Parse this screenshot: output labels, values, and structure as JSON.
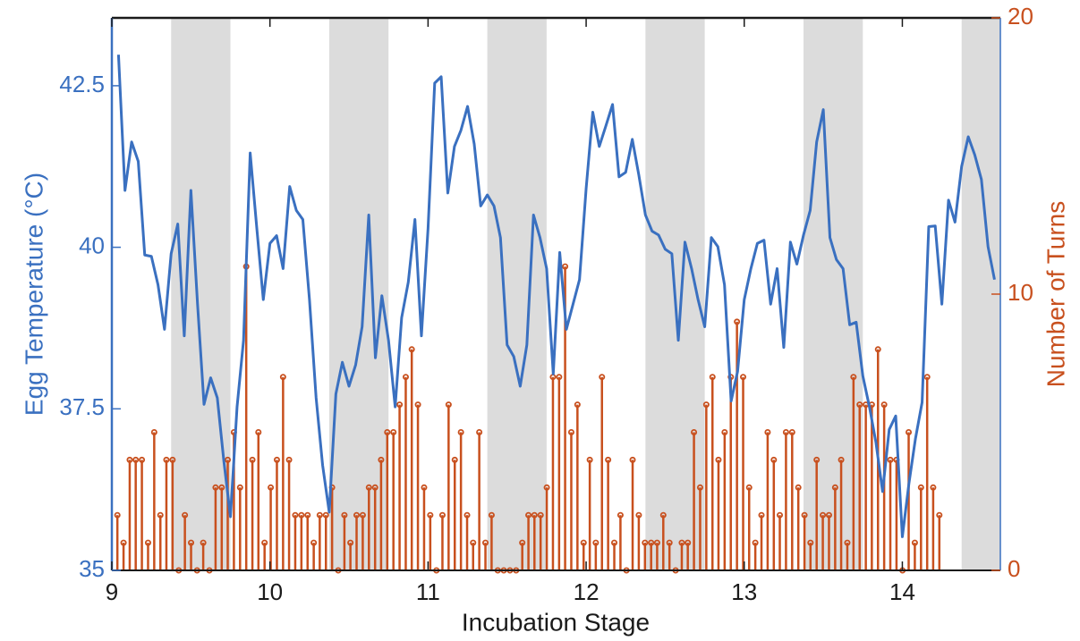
{
  "chart_data": {
    "type": "line",
    "xlabel": "Incubation Stage",
    "ylabel": "Egg Temperature (°C)",
    "y2label": "Number of Turns",
    "xlim": [
      9,
      14.62
    ],
    "xticks": [
      9,
      10,
      11,
      12,
      13,
      14
    ],
    "ylim": [
      35,
      43.55
    ],
    "yticks": [
      35,
      37.5,
      40,
      42.5
    ],
    "y2lim": [
      0,
      20
    ],
    "y2ticks": [
      0,
      10,
      20
    ],
    "y_color": "#3a70c0",
    "y2_color": "#c8501e",
    "shade_color": "#dcdcdc",
    "shaded_x_ranges": [
      [
        9.375,
        9.75
      ],
      [
        10.375,
        10.75
      ],
      [
        11.375,
        11.75
      ],
      [
        12.375,
        12.75
      ],
      [
        13.375,
        13.75
      ],
      [
        14.375,
        14.75
      ]
    ],
    "series": [
      {
        "type": "line",
        "axis": "y",
        "color": "#3a70c0",
        "x": [
          9.042,
          9.083,
          9.125,
          9.167,
          9.208,
          9.25,
          9.292,
          9.333,
          9.375,
          9.417,
          9.458,
          9.5,
          9.542,
          9.583,
          9.625,
          9.667,
          9.708,
          9.75,
          9.792,
          9.833,
          9.875,
          9.917,
          9.958,
          10,
          10.042,
          10.083,
          10.125,
          10.167,
          10.208,
          10.25,
          10.292,
          10.333,
          10.375,
          10.417,
          10.458,
          10.5,
          10.542,
          10.583,
          10.625,
          10.667,
          10.708,
          10.75,
          10.792,
          10.833,
          10.875,
          10.917,
          10.958,
          11,
          11.042,
          11.083,
          11.125,
          11.167,
          11.208,
          11.25,
          11.292,
          11.333,
          11.375,
          11.417,
          11.458,
          11.5,
          11.542,
          11.583,
          11.625,
          11.667,
          11.708,
          11.75,
          11.792,
          11.833,
          11.875,
          11.917,
          11.958,
          12,
          12.042,
          12.083,
          12.125,
          12.167,
          12.208,
          12.25,
          12.292,
          12.333,
          12.375,
          12.417,
          12.458,
          12.5,
          12.542,
          12.583,
          12.625,
          12.667,
          12.708,
          12.75,
          12.792,
          12.833,
          12.875,
          12.917,
          12.958,
          13,
          13.042,
          13.083,
          13.125,
          13.167,
          13.208,
          13.25,
          13.292,
          13.333,
          13.375,
          13.417,
          13.458,
          13.5,
          13.542,
          13.583,
          13.625,
          13.667,
          13.708,
          13.75,
          13.792,
          13.833,
          13.875,
          13.917,
          13.958,
          14,
          14.042,
          14.083,
          14.125,
          14.167,
          14.208,
          14.25,
          14.292,
          14.333,
          14.375,
          14.417,
          14.458,
          14.5,
          14.542,
          14.583
        ],
        "values": [
          42.98,
          40.88,
          41.63,
          41.33,
          39.88,
          39.86,
          39.42,
          38.73,
          39.9,
          40.36,
          38.63,
          40.88,
          39.12,
          37.57,
          37.98,
          37.67,
          36.7,
          35.83,
          37.53,
          38.56,
          41.46,
          40.29,
          39.19,
          40.06,
          40.18,
          39.67,
          40.94,
          40.57,
          40.43,
          39.19,
          37.67,
          36.63,
          35.9,
          37.73,
          38.22,
          37.85,
          38.18,
          38.77,
          40.5,
          38.29,
          39.25,
          38.56,
          37.53,
          38.91,
          39.46,
          40.43,
          38.63,
          40.29,
          42.54,
          42.64,
          40.84,
          41.56,
          41.81,
          42.18,
          41.6,
          40.64,
          40.81,
          40.64,
          40.15,
          38.49,
          38.31,
          37.85,
          38.49,
          40.5,
          40.15,
          39.67,
          38.04,
          39.92,
          38.73,
          39.12,
          39.5,
          40.91,
          42.09,
          41.56,
          41.88,
          42.21,
          41.09,
          41.16,
          41.67,
          41.12,
          40.5,
          40.25,
          40.19,
          39.97,
          39.9,
          38.56,
          40.08,
          39.67,
          39.19,
          38.77,
          40.15,
          40.01,
          39.42,
          37.62,
          38.08,
          39.19,
          39.67,
          40.06,
          40.11,
          39.12,
          39.67,
          38.45,
          40.08,
          39.74,
          40.19,
          40.57,
          41.63,
          42.13,
          40.15,
          39.81,
          39.67,
          38.8,
          38.84,
          38.01,
          37.53,
          36.98,
          36.22,
          37.18,
          37.39,
          35.52,
          36.35,
          37.04,
          37.6,
          40.32,
          40.33,
          39.12,
          40.73,
          40.39,
          41.25,
          41.71,
          41.43,
          41.05,
          40.01,
          39.5
        ]
      },
      {
        "type": "stem",
        "axis": "y2",
        "color": "#c8501e",
        "x": [
          9.035,
          9.074,
          9.113,
          9.151,
          9.19,
          9.229,
          9.268,
          9.307,
          9.345,
          9.384,
          9.423,
          9.462,
          9.501,
          9.539,
          9.578,
          9.617,
          9.656,
          9.695,
          9.733,
          9.772,
          9.811,
          9.85,
          9.889,
          9.927,
          9.966,
          10.005,
          10.044,
          10.083,
          10.121,
          10.16,
          10.199,
          10.238,
          10.277,
          10.315,
          10.354,
          10.393,
          10.432,
          10.471,
          10.509,
          10.548,
          10.587,
          10.626,
          10.665,
          10.703,
          10.742,
          10.781,
          10.82,
          10.859,
          10.897,
          10.936,
          10.975,
          11.014,
          11.053,
          11.091,
          11.13,
          11.169,
          11.208,
          11.247,
          11.285,
          11.324,
          11.363,
          11.402,
          11.441,
          11.479,
          11.518,
          11.557,
          11.596,
          11.635,
          11.673,
          11.712,
          11.751,
          11.79,
          11.829,
          11.867,
          11.906,
          11.945,
          11.984,
          12.023,
          12.061,
          12.1,
          12.139,
          12.178,
          12.217,
          12.255,
          12.294,
          12.333,
          12.372,
          12.411,
          12.449,
          12.488,
          12.527,
          12.566,
          12.605,
          12.643,
          12.682,
          12.721,
          12.76,
          12.799,
          12.837,
          12.876,
          12.915,
          12.954,
          12.993,
          13.031,
          13.07,
          13.109,
          13.148,
          13.187,
          13.225,
          13.264,
          13.303,
          13.342,
          13.381,
          13.419,
          13.458,
          13.497,
          13.536,
          13.575,
          13.613,
          13.652,
          13.691,
          13.73,
          13.769,
          13.807,
          13.846,
          13.885,
          13.924,
          13.963,
          14.001,
          14.04,
          14.079,
          14.118,
          14.157,
          14.195,
          14.234
        ],
        "values": [
          2,
          1,
          4,
          4,
          4,
          1,
          5,
          2,
          4,
          4,
          0,
          2,
          1,
          0,
          1,
          0,
          3,
          3,
          4,
          5,
          3,
          11,
          4,
          5,
          1,
          3,
          4,
          7,
          4,
          2,
          2,
          2,
          1,
          2,
          2,
          3,
          0,
          2,
          1,
          2,
          2,
          3,
          3,
          4,
          5,
          5,
          6,
          7,
          8,
          6,
          3,
          2,
          0,
          2,
          6,
          4,
          5,
          2,
          1,
          5,
          1,
          2,
          0,
          0,
          0,
          0,
          1,
          2,
          2,
          2,
          3,
          7,
          7,
          11,
          5,
          6,
          1,
          4,
          1,
          7,
          4,
          1,
          2,
          0,
          4,
          2,
          1,
          1,
          1,
          2,
          1,
          0,
          1,
          1,
          5,
          3,
          6,
          7,
          4,
          5,
          7,
          9,
          7,
          3,
          1,
          2,
          5,
          4,
          2,
          5,
          5,
          3,
          2,
          1,
          4,
          2,
          2,
          3,
          4,
          1,
          7,
          6,
          6,
          6,
          8,
          6,
          4,
          4,
          0,
          5,
          1,
          3,
          7,
          3,
          2
        ]
      }
    ]
  }
}
